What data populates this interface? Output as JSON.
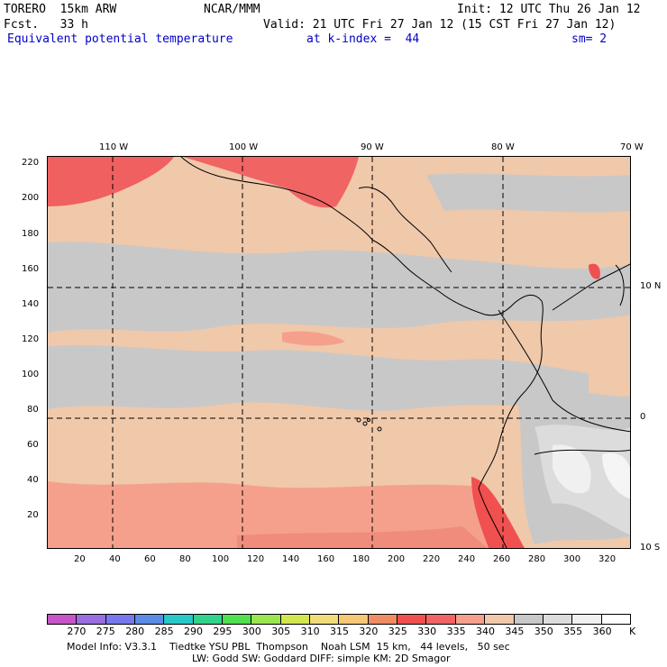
{
  "header": {
    "model": "TORERO  15km ARW",
    "org": "NCAR/MMM",
    "init": "Init: 12 UTC Thu 26 Jan 12",
    "fcst": "Fcst.   33 h",
    "valid": "Valid: 21 UTC Fri 27 Jan 12 (15 CST Fri 27 Jan 12)",
    "field": "Equivalent potential temperature",
    "level": "at k-index =  44",
    "smooth": "sm= 2"
  },
  "top_lon_labels": [
    "110 W",
    "100 W",
    "90 W",
    "80 W",
    "70 W"
  ],
  "right_lat_labels": [
    "10 N",
    "0",
    "10 S"
  ],
  "y_ticks": [
    "220",
    "200",
    "180",
    "160",
    "140",
    "120",
    "100",
    "80",
    "60",
    "40",
    "20"
  ],
  "x_ticks": [
    "20",
    "40",
    "60",
    "80",
    "100",
    "120",
    "140",
    "160",
    "180",
    "200",
    "220",
    "240",
    "260",
    "280",
    "300",
    "320"
  ],
  "colorbar": {
    "labels": [
      "270",
      "275",
      "280",
      "285",
      "290",
      "295",
      "300",
      "305",
      "310",
      "315",
      "320",
      "325",
      "330",
      "335",
      "340",
      "345",
      "350",
      "355",
      "360"
    ],
    "unit": "K",
    "colors": [
      "#c855c8",
      "#9a6ee0",
      "#7878ee",
      "#5a8ce6",
      "#28c8c8",
      "#32d28c",
      "#50e050",
      "#9ae650",
      "#d2e650",
      "#f0dc78",
      "#f5c878",
      "#f08c64",
      "#f05050",
      "#f06464",
      "#f5a08c",
      "#f0c8aa",
      "#c8c8c8",
      "#dcdcdc",
      "#f0f0f0",
      "#ffffff"
    ]
  },
  "footer": {
    "line1": "Model Info: V3.3.1    Tiedtke YSU PBL  Thompson    Noah LSM  15 km,   44 levels,   50 sec",
    "line2": "LW: Godd SW: Goddard DIFF: simple KM: 2D Smagor"
  }
}
